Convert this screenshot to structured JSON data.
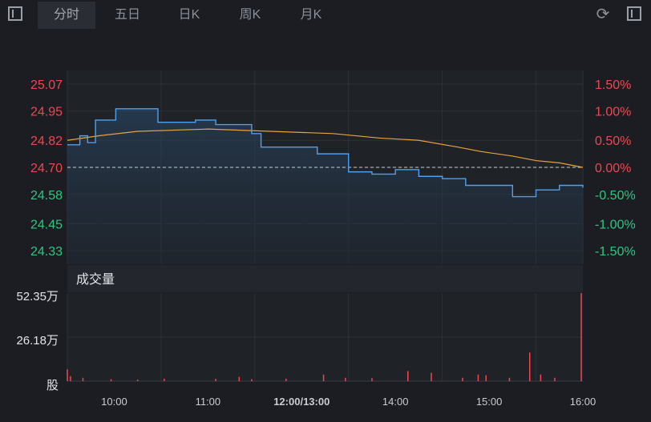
{
  "tabs": [
    {
      "label": "分时",
      "active": true
    },
    {
      "label": "五日",
      "active": false
    },
    {
      "label": "日K",
      "active": false
    },
    {
      "label": "周K",
      "active": false
    },
    {
      "label": "月K",
      "active": false
    }
  ],
  "icons": {
    "left": "panel-toggle-icon",
    "refresh": "refresh-icon",
    "right": "panel-toggle-icon"
  },
  "colors": {
    "up": "#f0474f",
    "down": "#2fc77f",
    "price_line": "#4ea0f0",
    "avg_line": "#e8a33c"
  },
  "chart_data": {
    "type": "line",
    "price_chart": {
      "prev_close": 24.7,
      "y_ticks_left": [
        "25.07",
        "24.95",
        "24.82",
        "24.70",
        "24.58",
        "24.45",
        "24.33"
      ],
      "y_ticks_right": [
        "1.50%",
        "1.00%",
        "0.50%",
        "0.00%",
        "-0.50%",
        "-1.00%",
        "-1.50%"
      ],
      "ylim": [
        24.27,
        25.13
      ],
      "series": [
        {
          "key": "price",
          "x_minutes": [
            0,
            8,
            13,
            18,
            31,
            58,
            82,
            95,
            118,
            124,
            147,
            160,
            180,
            195,
            210,
            225,
            240,
            255,
            270,
            285,
            300,
            315,
            330
          ],
          "values": [
            24.8,
            24.84,
            24.81,
            24.91,
            24.96,
            24.9,
            24.91,
            24.89,
            24.85,
            24.79,
            24.79,
            24.76,
            24.68,
            24.67,
            24.69,
            24.66,
            24.65,
            24.62,
            24.62,
            24.57,
            24.6,
            24.62,
            24.61
          ]
        },
        {
          "key": "avg",
          "x_minutes": [
            0,
            20,
            45,
            90,
            130,
            170,
            200,
            225,
            250,
            265,
            285,
            300,
            315,
            330
          ],
          "values": [
            24.82,
            24.84,
            24.86,
            24.87,
            24.86,
            24.85,
            24.83,
            24.82,
            24.79,
            24.77,
            24.75,
            24.73,
            24.72,
            24.7
          ]
        }
      ]
    },
    "volume_chart": {
      "title": "成交量",
      "y_ticks": [
        "52.35万",
        "26.18万"
      ],
      "unit": "股",
      "ylim": [
        0,
        52.35
      ],
      "spikes": [
        {
          "minute": 0,
          "value": 7.0
        },
        {
          "minute": 2,
          "value": 3.0
        },
        {
          "minute": 10,
          "value": 2.0
        },
        {
          "minute": 28,
          "value": 1.2
        },
        {
          "minute": 45,
          "value": 1.0
        },
        {
          "minute": 62,
          "value": 1.5
        },
        {
          "minute": 95,
          "value": 1.4
        },
        {
          "minute": 110,
          "value": 2.5
        },
        {
          "minute": 118,
          "value": 1.2
        },
        {
          "minute": 140,
          "value": 1.5
        },
        {
          "minute": 164,
          "value": 4.0
        },
        {
          "minute": 178,
          "value": 2.0
        },
        {
          "minute": 195,
          "value": 1.8
        },
        {
          "minute": 218,
          "value": 6.0
        },
        {
          "minute": 233,
          "value": 5.0
        },
        {
          "minute": 253,
          "value": 2.0
        },
        {
          "minute": 263,
          "value": 4.0
        },
        {
          "minute": 268,
          "value": 3.5
        },
        {
          "minute": 283,
          "value": 2.0
        },
        {
          "minute": 296,
          "value": 17.0
        },
        {
          "minute": 303,
          "value": 4.0
        },
        {
          "minute": 312,
          "value": 2.0
        },
        {
          "minute": 329,
          "value": 52.35
        }
      ]
    },
    "x_ticks": [
      "10:00",
      "11:00",
      "12:00/13:00",
      "14:00",
      "15:00",
      "16:00"
    ]
  }
}
